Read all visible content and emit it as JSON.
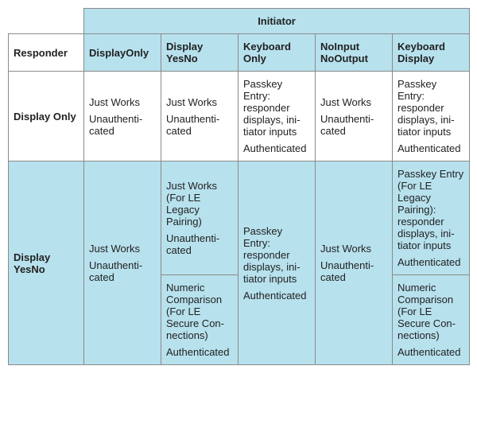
{
  "headers": {
    "initiator": "Initiator",
    "responder": "Responder",
    "cols": [
      "DisplayOnly",
      "Display YesNo",
      "Keyboard Only",
      "NoInput NoOutput",
      "Keyboard Display"
    ]
  },
  "rows": {
    "displayOnly": {
      "label": "Display Only",
      "c0": {
        "p1": "Just Works",
        "p2": "Unauthenti­cated"
      },
      "c1": {
        "p1": "Just Works",
        "p2": "Unauthenti­cated"
      },
      "c2": {
        "p1": "Passkey Entry: responder displays, ini­tiator inputs",
        "p2": "Authenti­cated"
      },
      "c3": {
        "p1": "Just Works",
        "p2": "Unauthenti­cated"
      },
      "c4": {
        "p1": "Passkey Entry: responder displays, ini­tiator inputs",
        "p2": "Authenti­cated"
      }
    },
    "displayYesNo": {
      "label": "Display YesNo",
      "c0": {
        "p1": "Just Works",
        "p2": "Unauthenti­cated"
      },
      "c1a": {
        "p1": "Just Works (For LE Legacy Pairing)",
        "p2": "Unauthenti­cated"
      },
      "c1b": {
        "p1": "Numeric Comparison (For LE Secure Con­nections)",
        "p2": "Authenti­cated"
      },
      "c2": {
        "p1": "Passkey Entry: responder displays, ini­tiator inputs",
        "p2": "Authenti­cated"
      },
      "c3": {
        "p1": "Just Works",
        "p2": "Unauthenti­cated"
      },
      "c4a": {
        "p1": "Passkey Entry (For LE Legacy Pairing): responder displays, ini­tiator inputs",
        "p2": "Authenti­cated"
      },
      "c4b": {
        "p1": "Numeric Comparison (For LE Secure Con­nections)",
        "p2": "Authenti­cated"
      }
    }
  }
}
